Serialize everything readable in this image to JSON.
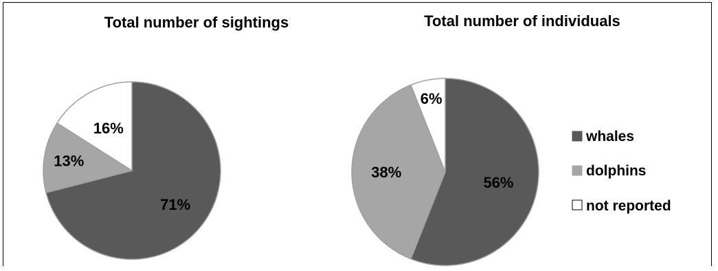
{
  "colors": {
    "whales": "#595959",
    "dolphins": "#a6a6a6",
    "not_reported": "#ffffff",
    "slice_edge": "#a0a0a0",
    "text": "#000000"
  },
  "chart_data": [
    {
      "type": "pie",
      "title": "Total number of sightings",
      "categories": [
        "whales",
        "dolphins",
        "not reported"
      ],
      "values": [
        71,
        13,
        16
      ],
      "labels": [
        "71%",
        "13%",
        "16%"
      ],
      "start_angle_deg": 0,
      "direction": "clockwise"
    },
    {
      "type": "pie",
      "title": "Total number of individuals",
      "categories": [
        "whales",
        "dolphins",
        "not reported"
      ],
      "values": [
        56,
        38,
        6
      ],
      "labels": [
        "56%",
        "38%",
        "6%"
      ],
      "start_angle_deg": 0,
      "direction": "clockwise",
      "legend": {
        "position": "right",
        "entries": [
          "whales",
          "dolphins",
          "not reported"
        ]
      }
    }
  ]
}
